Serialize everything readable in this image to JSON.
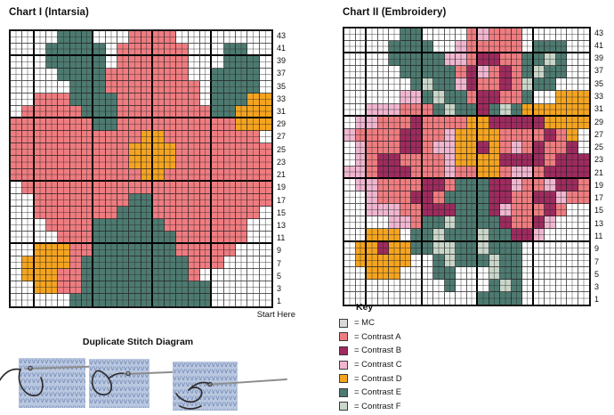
{
  "palette": {
    ".": "#ffffff",
    "m": "#d9d9d9",
    "a": "#ef7c80",
    "b": "#9e2a5e",
    "c": "#f0b6d0",
    "d": "#f5a41f",
    "e": "#4d7a70",
    "f": "#c9d6c9"
  },
  "charts": [
    {
      "title": "Chart I (Intarsia)",
      "start_here": "Start Here",
      "row_labels": [
        "43",
        "41",
        "39",
        "37",
        "35",
        "33",
        "31",
        "29",
        "27",
        "25",
        "23",
        "21",
        "19",
        "17",
        "15",
        "13",
        "11",
        "9",
        "7",
        "5",
        "3",
        "1"
      ],
      "grid": [
        "....eee...aaaa........",
        "...eeeee.aaaaaa...ee..",
        "...eeeee.aaaaaa...eee.",
        "....eeeeaaaaaaa..eeee.",
        ".....eeeaaaaaaaa.eeee.",
        "..aaaeeeeaaaaaaa.eeedd",
        ".aaaaaeeeaaaaaaaaeeddd",
        "aaaaaaaeeaaaaaaaaaaddd",
        "aaaaaaaaaaaddaaaaaaaa.",
        "aaaaaaaaaaddddaaaaaaaa",
        "aaaaaaaaaaddddaaaaaaaa",
        "aaaaaaaaaaaddaaaaaaaaa",
        ".aaaaaaaaaaaaaaaaaaaaa",
        "..aaaaaaaaeeaaaaaaaaaa",
        "..aaaaaaaeeeaaaaaaaaa.",
        "...aaaaeeeeeeaaaaaaa..",
        "....aaaeeeeeeeaaaaaa..",
        "..dddaaeeeeeeeaaaaa...",
        ".ddddaeeeeeeeeeaaa....",
        ".dddaaeeeeeeeeea......",
        "..ddaaeeeeeeeeeee.....",
        ".....eeeeeeeeeeee....."
      ]
    },
    {
      "title": "Chart II (Embroidery)",
      "row_labels": [
        "43",
        "41",
        "39",
        "37",
        "35",
        "33",
        "31",
        "29",
        "27",
        "25",
        "23",
        "21",
        "19",
        "17",
        "15",
        "13",
        "11",
        "9",
        "7",
        "5",
        "3",
        "1"
      ],
      "grid": [
        ".....ee....acaaa......",
        "....eeee..caaaaa.eee..",
        "....eeeeeccabbaaeefe..",
        ".....eeeeeabcabaefee..",
        "......efeecbaabafee...",
        ".....ccefeeabbaae..ddd",
        "..cccaaaefeebefedddddd",
        ".ccaaabaaaaddbbbbbdddd",
        "caaaabbaacddddaaaabad.",
        ".caaabbaccddbdacabaab.",
        ".cabbaaaacddddbbbbabbb",
        "ccabbbaaacaaddaccabbbb",
        ".ccaaaabbaeeebbcaacbba",
        "..caaabbaeeeebbaabbcaa",
        "..cccaabbbeeebcaaaba..",
        "....ccaeefeeeebaabc...",
        "..ddd.eefeeefeebbc....",
        ".ddbddeeffeefeee......",
        ".ddddd..efeeefee......",
        "..ddd...ee...fee......",
        ".........e...efe......",
        "............eeee......"
      ]
    }
  ],
  "key": {
    "title": "Key",
    "entries": [
      {
        "code": "m",
        "label": "= MC"
      },
      {
        "code": "a",
        "label": "= Contrast A"
      },
      {
        "code": "b",
        "label": "= Contrast B"
      },
      {
        "code": "c",
        "label": "= Contrast C"
      },
      {
        "code": "d",
        "label": "= Contrast D"
      },
      {
        "code": "e",
        "label": "= Contrast E"
      },
      {
        "code": "f",
        "label": "= Contrast F"
      }
    ]
  },
  "duplicate_stitch": {
    "title": "Duplicate Stitch Diagram",
    "swatch_color": "#b9c7e0",
    "stitch_color": "#7087b2",
    "panel_count": 3
  }
}
